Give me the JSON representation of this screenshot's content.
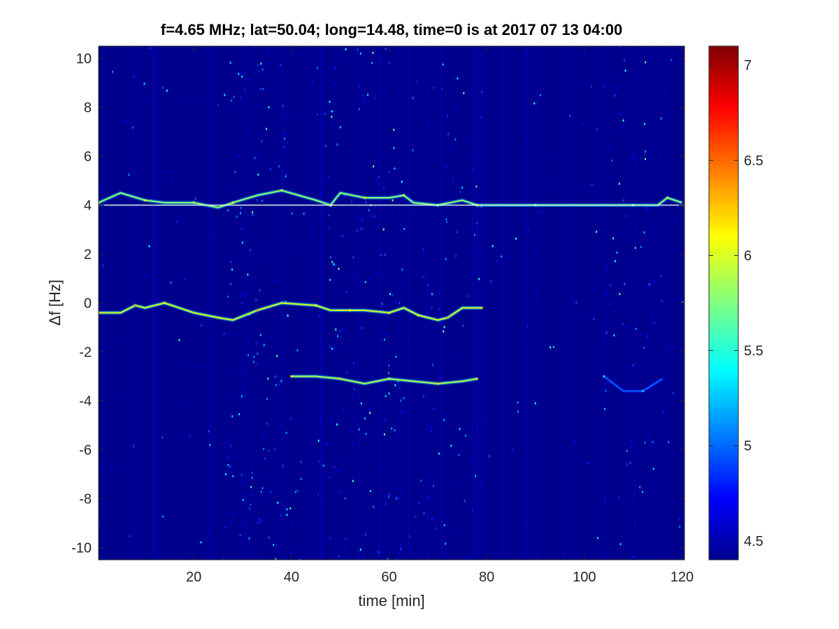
{
  "chart_data": {
    "type": "heatmap",
    "title": "f=4.65 MHz;  lat=50.04; long=14.48, time=0 is at 2017 07 13 04:00",
    "xlabel": "time [min]",
    "ylabel": "Δf [Hz]",
    "xlim": [
      0.5,
      120.5
    ],
    "ylim": [
      -10.5,
      10.5
    ],
    "xticks": [
      20,
      40,
      60,
      80,
      100,
      120
    ],
    "yticks": [
      -10,
      -8,
      -6,
      -4,
      -2,
      0,
      2,
      4,
      6,
      8,
      10
    ],
    "colorbar": {
      "clim": [
        4.4,
        7.1
      ],
      "ticks": [
        4.5,
        5,
        5.5,
        6,
        6.5,
        7
      ],
      "colormap": "jet"
    },
    "background_value": 4.4,
    "noise_bands": [
      {
        "x": [
          26,
          39
        ],
        "strength": 0.6
      },
      {
        "x": [
          45,
          63
        ],
        "strength": 0.5
      },
      {
        "x": [
          64,
          79
        ],
        "strength": 0.25
      },
      {
        "x": [
          104,
          113
        ],
        "strength": 0.35
      }
    ],
    "traces": [
      {
        "name": "",
        "x": [
          0.5,
          5,
          10,
          14,
          20,
          25,
          28,
          33,
          38,
          45,
          48,
          50,
          55,
          60,
          63,
          65,
          70,
          75,
          78,
          85,
          90,
          100,
          110,
          115,
          117,
          120
        ],
        "y": [
          4.1,
          4.5,
          4.2,
          4.1,
          4.1,
          3.9,
          4.1,
          4.4,
          4.6,
          4.2,
          4.0,
          4.5,
          4.3,
          4.3,
          4.4,
          4.1,
          4.0,
          4.2,
          4.0,
          4.0,
          4.0,
          4.0,
          4.0,
          4.0,
          4.3,
          4.1
        ],
        "intensity": 5.8
      },
      {
        "name": "",
        "x": [
          0.5,
          5,
          8,
          10,
          14,
          20,
          25,
          28,
          33,
          38,
          45,
          48,
          52,
          55,
          60,
          63,
          66,
          70,
          72,
          75,
          79
        ],
        "y": [
          -0.4,
          -0.4,
          -0.1,
          -0.2,
          0.0,
          -0.4,
          -0.6,
          -0.7,
          -0.3,
          0.0,
          -0.1,
          -0.3,
          -0.3,
          -0.3,
          -0.4,
          -0.2,
          -0.5,
          -0.7,
          -0.6,
          -0.2,
          -0.2
        ],
        "intensity": 6.0
      },
      {
        "name": "",
        "x": [
          40,
          45,
          50,
          55,
          60,
          65,
          70,
          75,
          78
        ],
        "y": [
          -3.0,
          -3.0,
          -3.1,
          -3.3,
          -3.1,
          -3.2,
          -3.3,
          -3.2,
          -3.1
        ],
        "intensity": 5.9
      },
      {
        "name": "",
        "x": [
          104,
          108,
          112,
          116
        ],
        "y": [
          -3.0,
          -3.6,
          -3.6,
          -3.1
        ],
        "intensity": 5.0
      }
    ],
    "reference_line": {
      "y": 4.0,
      "x": [
        0.5,
        120.5
      ],
      "color": "#d9f4e0"
    }
  }
}
